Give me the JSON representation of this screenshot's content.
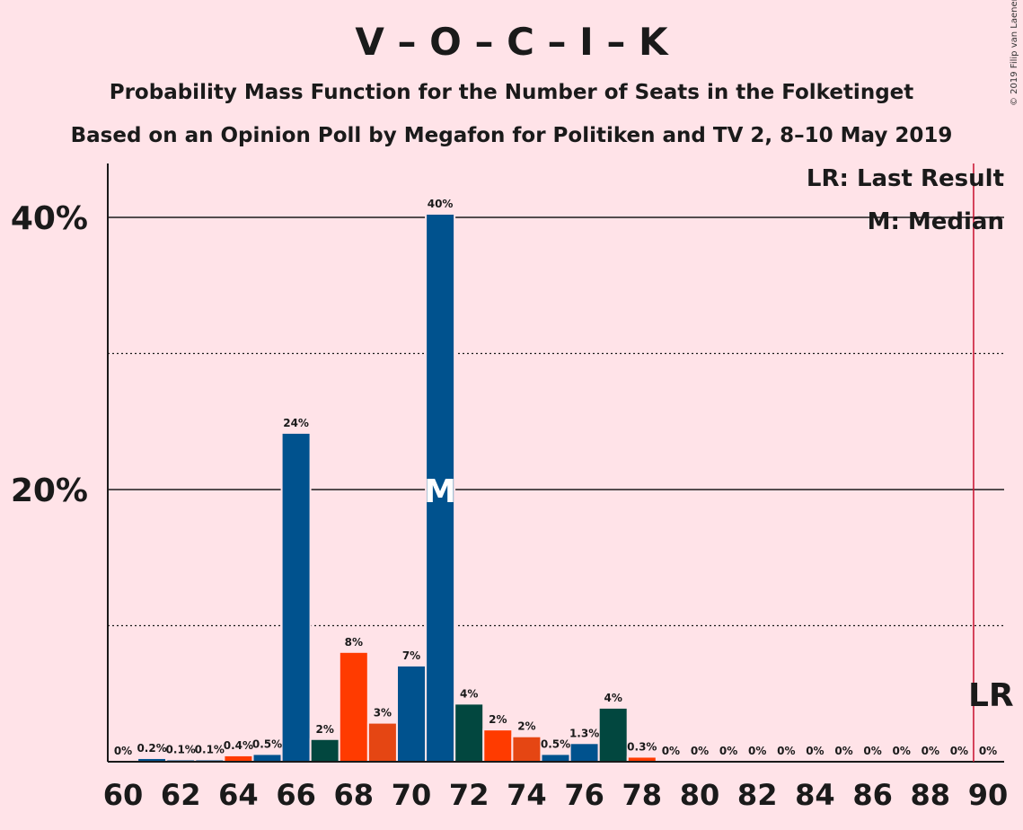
{
  "chart_data": {
    "type": "bar",
    "title": "V – O – C – I – K",
    "subtitle_lines": [
      "Probability Mass Function for the Number of Seats in the Folketinget",
      "Based on an Opinion Poll by Megafon for Politiken and TV 2, 8–10 May 2019"
    ],
    "copyright": "© 2019 Filip van Laenen",
    "legend": {
      "lr_text": "LR: Last Result",
      "median_text": "M: Median",
      "placement": "top-right"
    },
    "xlim": [
      60,
      90
    ],
    "ylim": [
      0,
      44
    ],
    "x_ticks": [
      60,
      62,
      64,
      66,
      68,
      70,
      72,
      74,
      76,
      78,
      80,
      82,
      84,
      86,
      88,
      90
    ],
    "y_ticks_labeled": [
      {
        "value": 20,
        "label": "20%"
      },
      {
        "value": 40,
        "label": "40%"
      }
    ],
    "y_gridlines_dotted": [
      10,
      30
    ],
    "seats": [
      60,
      61,
      62,
      63,
      64,
      65,
      66,
      67,
      68,
      69,
      70,
      71,
      72,
      73,
      74,
      75,
      76,
      77,
      78,
      79,
      80,
      81,
      82,
      83,
      84,
      85,
      86,
      87,
      88,
      89,
      90
    ],
    "values": [
      0,
      0.2,
      0.1,
      0.1,
      0.4,
      0.5,
      24.1,
      1.6,
      8.0,
      2.8,
      7.0,
      40.2,
      4.2,
      2.3,
      1.8,
      0.5,
      1.3,
      3.9,
      0.3,
      0,
      0,
      0,
      0,
      0,
      0,
      0,
      0,
      0,
      0,
      0,
      0
    ],
    "labels": [
      "0%",
      "0.2%",
      "0.1%",
      "0.1%",
      "0.4%",
      "0.5%",
      "24%",
      "2%",
      "8%",
      "3%",
      "7%",
      "40%",
      "4%",
      "2%",
      "2%",
      "0.5%",
      "1.3%",
      "4%",
      "0.3%",
      "0%",
      "0%",
      "0%",
      "0%",
      "0%",
      "0%",
      "0%",
      "0%",
      "0%",
      "0%",
      "0%",
      "0%"
    ],
    "colors": [
      "#00528E",
      "#00528E",
      "#00528E",
      "#00528E",
      "#FF3B00",
      "#00528E",
      "#00528E",
      "#02473F",
      "#FF3B00",
      "#E54613",
      "#00528E",
      "#00528E",
      "#02473F",
      "#FF3B00",
      "#E54613",
      "#00528E",
      "#00528E",
      "#02473F",
      "#FF3B00",
      "#00528E",
      "#00528E",
      "#00528E",
      "#00528E",
      "#00528E",
      "#00528E",
      "#00528E",
      "#00528E",
      "#00528E",
      "#00528E",
      "#00528E",
      "#00528E"
    ],
    "median_seat": 71,
    "median_marker": "M",
    "last_result_seat": 89.5,
    "last_result_marker": "LR",
    "last_result_color": "#C8102E"
  }
}
